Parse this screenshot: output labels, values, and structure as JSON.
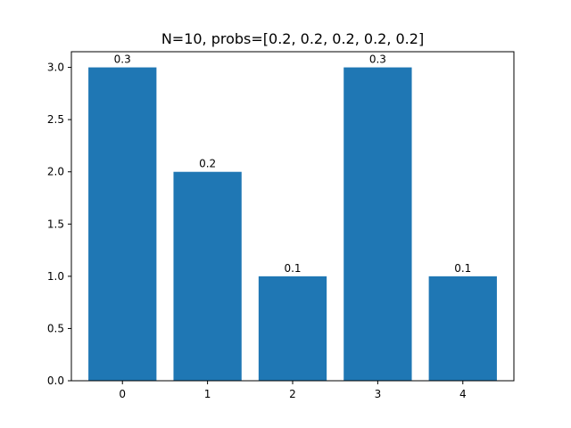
{
  "chart_data": {
    "type": "bar",
    "title": "N=10, probs=[0.2, 0.2, 0.2, 0.2, 0.2]",
    "xlabel": "",
    "ylabel": "",
    "categories": [
      "0",
      "1",
      "2",
      "3",
      "4"
    ],
    "values": [
      3,
      2,
      1,
      3,
      1
    ],
    "bar_labels": [
      "0.3",
      "0.2",
      "0.1",
      "0.3",
      "0.1"
    ],
    "ylim": [
      0,
      3.15
    ],
    "yticks": [
      0.0,
      0.5,
      1.0,
      1.5,
      2.0,
      2.5,
      3.0
    ],
    "ytick_labels": [
      "0.0",
      "0.5",
      "1.0",
      "1.5",
      "2.0",
      "2.5",
      "3.0"
    ],
    "grid": false,
    "bar_color": "#1f77b4"
  }
}
